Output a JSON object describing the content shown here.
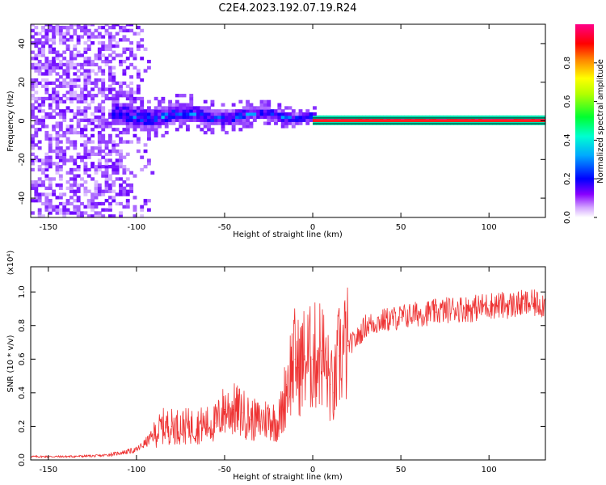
{
  "title": "C2E4.2023.192.07.19.R24",
  "colors": {
    "snr_line": "#ee3333",
    "spectrum_line": "#e83030",
    "axis": "#000000",
    "background": "#ffffff"
  },
  "chart_data": [
    {
      "type": "heatmap",
      "panel": "spectrogram",
      "xlabel": "Height of straight line (km)",
      "ylabel": "Frequency (Hz)",
      "xlim": [
        -160,
        132
      ],
      "ylim": [
        -50,
        50
      ],
      "xticks": [
        "-150",
        "-100",
        "-50",
        "0",
        "50",
        "100"
      ],
      "yticks": [
        "-40",
        "-20",
        "0",
        "20",
        "40"
      ],
      "colorbar": {
        "label": "Normalized spectral amplitude",
        "range": [
          0,
          1
        ],
        "ticks": [
          "0.0",
          "0.2",
          "0.4",
          "0.6",
          "0.8"
        ],
        "colormap": [
          "#ffffff",
          "#b070ff",
          "#6a00ff",
          "#0000ff",
          "#00c8ff",
          "#00ff60",
          "#f0ff00",
          "#ff8000",
          "#ff0000",
          "#ff0080"
        ]
      },
      "features": [
        {
          "region": "noise",
          "x_range": [
            -160,
            -90
          ],
          "freq_range": [
            -50,
            50
          ],
          "amplitude": 0.15
        },
        {
          "region": "signal_band",
          "x_range": [
            -115,
            0
          ],
          "freq_center": 2,
          "freq_halfwidth": 6,
          "amplitude": 0.35
        },
        {
          "region": "strong_line",
          "x_range": [
            0,
            132
          ],
          "freq": 0,
          "amplitude": 1.0
        }
      ]
    },
    {
      "type": "line",
      "panel": "snr",
      "xlabel": "Height of straight line (km)",
      "ylabel": "SNR (10 * v/v)",
      "y_multiplier": "(x10⁴)",
      "xlim": [
        -160,
        132
      ],
      "ylim": [
        0,
        1.15
      ],
      "xticks": [
        "-150",
        "-100",
        "-50",
        "0",
        "50",
        "100"
      ],
      "yticks": [
        "0.0",
        "0.2",
        "0.4",
        "0.6",
        "0.8",
        "1.0"
      ],
      "series": [
        {
          "x": [
            -160,
            -140,
            -120,
            -110,
            -100,
            -95,
            -90,
            -85,
            -80,
            -70,
            -60,
            -55,
            -50,
            -45,
            -40,
            -35,
            -30,
            -25,
            -20,
            -17,
            -15,
            -12,
            -10,
            -8,
            -5,
            0,
            5,
            10,
            12,
            15,
            20,
            25,
            30,
            40,
            50,
            60,
            70,
            80,
            90,
            100,
            110,
            120,
            132
          ],
          "y": [
            0.02,
            0.02,
            0.025,
            0.04,
            0.06,
            0.1,
            0.15,
            0.2,
            0.2,
            0.2,
            0.21,
            0.22,
            0.3,
            0.3,
            0.28,
            0.24,
            0.23,
            0.25,
            0.22,
            0.3,
            0.45,
            0.55,
            0.6,
            0.55,
            0.6,
            0.6,
            0.65,
            0.45,
            0.4,
            0.62,
            0.68,
            0.72,
            0.8,
            0.83,
            0.85,
            0.87,
            0.88,
            0.9,
            0.9,
            0.92,
            0.92,
            0.93,
            0.93
          ]
        }
      ]
    }
  ]
}
